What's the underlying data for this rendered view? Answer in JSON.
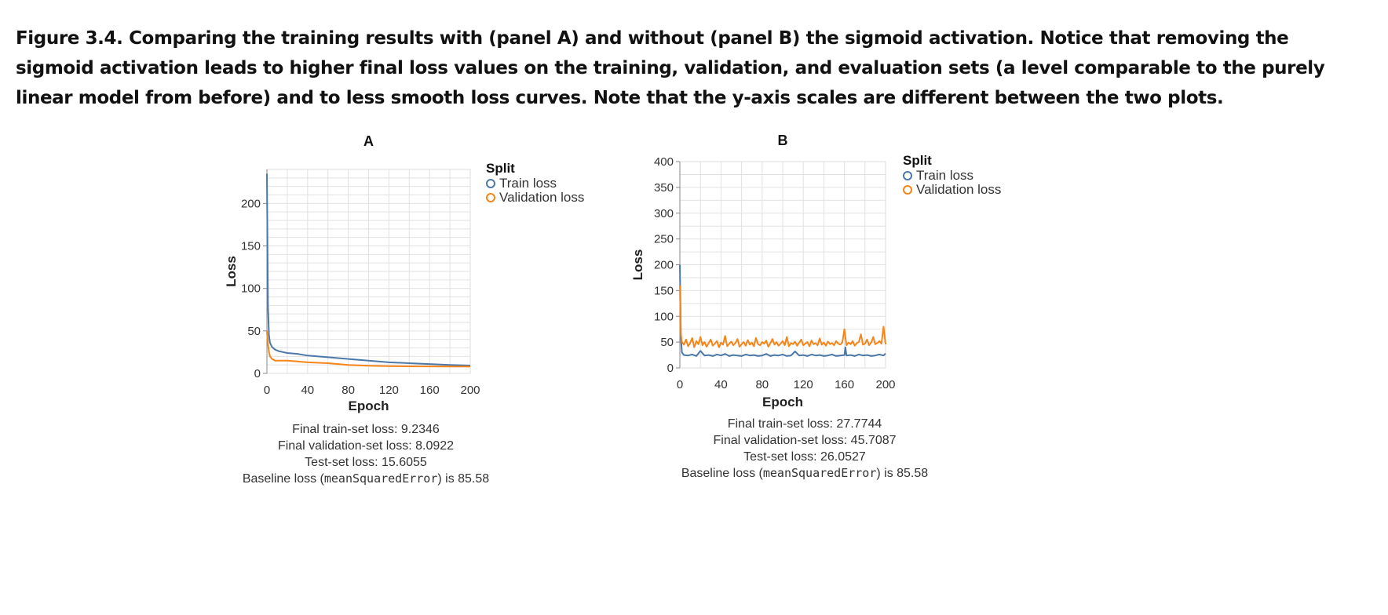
{
  "caption": "Figure 3.4. Comparing the training results with (panel A) and without (panel B) the sigmoid activation. Notice that removing the sigmoid activation leads to higher final loss values on the training, validation, and evaluation sets (a level comparable to the purely linear model from before) and to less smooth loss curves. Note that the y-axis scales are different between the two plots.",
  "colors": {
    "train": "#4c78a8",
    "validation": "#f58518",
    "grid": "#e2e2e2",
    "axis": "#888888"
  },
  "chart_data": [
    {
      "type": "line",
      "title": "A",
      "xlabel": "Epoch",
      "ylabel": "Loss",
      "xlim": [
        0,
        200
      ],
      "ylim": [
        0,
        240
      ],
      "xticks": [
        0,
        40,
        80,
        120,
        160,
        200
      ],
      "yticks": [
        0,
        50,
        100,
        150,
        200
      ],
      "grid": true,
      "legend": {
        "title": "Split",
        "placement": "right",
        "items": [
          "Train loss",
          "Validation loss"
        ]
      },
      "series": [
        {
          "name": "Train loss",
          "color": "#4c78a8",
          "x": [
            0,
            1,
            2,
            3,
            5,
            8,
            12,
            20,
            30,
            40,
            60,
            80,
            100,
            120,
            140,
            160,
            180,
            200
          ],
          "y": [
            235,
            80,
            45,
            36,
            31,
            28,
            26,
            24,
            23,
            21,
            19,
            17,
            15,
            13,
            12,
            11,
            10,
            9.2
          ]
        },
        {
          "name": "Validation loss",
          "color": "#f58518",
          "x": [
            0,
            1,
            2,
            3,
            5,
            8,
            12,
            20,
            30,
            40,
            60,
            80,
            100,
            120,
            140,
            160,
            180,
            200
          ],
          "y": [
            50,
            35,
            25,
            20,
            17,
            15,
            15,
            15,
            14,
            13,
            12,
            10,
            9,
            8.5,
            8.3,
            8.2,
            8.1,
            8.1
          ]
        }
      ],
      "stats": [
        "Final train-set loss: 9.2346",
        "Final validation-set loss: 8.0922",
        "Test-set loss: 15.6055"
      ],
      "baseline": {
        "prefix": "Baseline loss (",
        "code": "meanSquaredError",
        "suffix": ") is 85.58"
      }
    },
    {
      "type": "line",
      "title": "B",
      "xlabel": "Epoch",
      "ylabel": "Loss",
      "xlim": [
        0,
        200
      ],
      "ylim": [
        0,
        400
      ],
      "xticks": [
        0,
        40,
        80,
        120,
        160,
        200
      ],
      "yticks": [
        0,
        50,
        100,
        150,
        200,
        250,
        300,
        350,
        400
      ],
      "grid": true,
      "legend": {
        "title": "Split",
        "placement": "right",
        "items": [
          "Train loss",
          "Validation loss"
        ]
      },
      "series": [
        {
          "name": "Train loss",
          "color": "#4c78a8",
          "x": [
            0,
            1,
            2,
            4,
            8,
            12,
            16,
            20,
            24,
            28,
            32,
            36,
            40,
            44,
            48,
            52,
            56,
            60,
            64,
            68,
            72,
            76,
            80,
            84,
            88,
            92,
            96,
            100,
            104,
            108,
            112,
            116,
            120,
            124,
            128,
            132,
            136,
            140,
            144,
            148,
            152,
            156,
            160,
            161,
            162,
            166,
            170,
            174,
            178,
            182,
            186,
            190,
            194,
            198,
            200
          ],
          "y": [
            200,
            60,
            30,
            25,
            24,
            26,
            23,
            33,
            24,
            25,
            23,
            26,
            24,
            27,
            23,
            25,
            24,
            23,
            26,
            24,
            25,
            23,
            24,
            27,
            23,
            25,
            24,
            26,
            23,
            24,
            32,
            24,
            25,
            23,
            26,
            24,
            25,
            23,
            24,
            26,
            23,
            24,
            25,
            40,
            24,
            25,
            23,
            26,
            24,
            25,
            23,
            24,
            26,
            24,
            27.8
          ]
        },
        {
          "name": "Validation loss",
          "color": "#f58518",
          "x": [
            0,
            1,
            2,
            4,
            6,
            8,
            10,
            12,
            14,
            16,
            18,
            20,
            22,
            24,
            26,
            28,
            30,
            32,
            34,
            36,
            38,
            40,
            42,
            44,
            46,
            48,
            50,
            52,
            54,
            56,
            58,
            60,
            62,
            64,
            66,
            68,
            70,
            72,
            74,
            76,
            78,
            80,
            82,
            84,
            86,
            88,
            90,
            92,
            94,
            96,
            98,
            100,
            102,
            104,
            106,
            108,
            110,
            112,
            114,
            116,
            118,
            120,
            122,
            124,
            126,
            128,
            130,
            132,
            134,
            136,
            138,
            140,
            142,
            144,
            146,
            148,
            150,
            152,
            154,
            156,
            158,
            160,
            162,
            164,
            166,
            168,
            170,
            172,
            174,
            176,
            178,
            180,
            182,
            184,
            186,
            188,
            190,
            192,
            194,
            196,
            198,
            200
          ],
          "y": [
            160,
            65,
            50,
            45,
            55,
            42,
            48,
            58,
            40,
            52,
            46,
            60,
            44,
            50,
            41,
            48,
            55,
            43,
            47,
            52,
            40,
            49,
            45,
            62,
            42,
            47,
            51,
            44,
            48,
            56,
            41,
            46,
            50,
            43,
            54,
            45,
            49,
            42,
            58,
            46,
            44,
            50,
            47,
            53,
            41,
            48,
            56,
            45,
            50,
            43,
            47,
            52,
            44,
            60,
            42,
            48,
            46,
            51,
            43,
            49,
            55,
            44,
            47,
            50,
            42,
            53,
            46,
            48,
            44,
            57,
            45,
            49,
            43,
            51,
            46,
            48,
            44,
            52,
            47,
            45,
            50,
            75,
            44,
            49,
            46,
            52,
            43,
            48,
            50,
            65,
            45,
            47,
            55,
            44,
            49,
            60,
            46,
            48,
            52,
            47,
            80,
            45.7
          ]
        }
      ],
      "stats": [
        "Final train-set loss: 27.7744",
        "Final validation-set loss: 45.7087",
        "Test-set loss: 26.0527"
      ],
      "baseline": {
        "prefix": "Baseline loss (",
        "code": "meanSquaredError",
        "suffix": ") is 85.58"
      }
    }
  ]
}
